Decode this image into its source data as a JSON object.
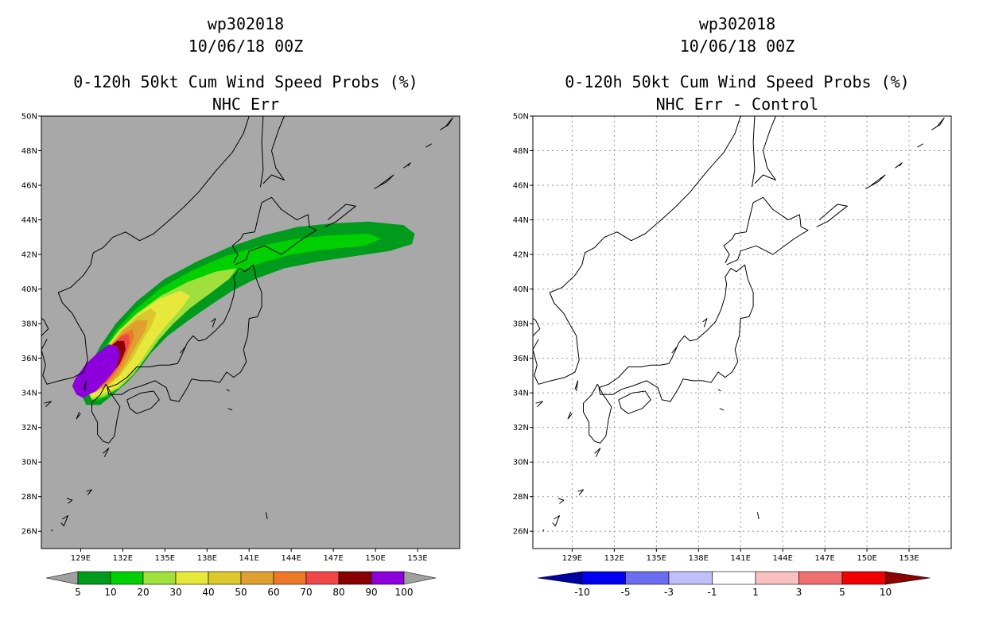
{
  "panels": [
    {
      "id": "left",
      "title_lines": [
        "wp302018",
        "10/06/18 00Z",
        "0-120h 50kt Cum Wind Speed Probs (%)",
        "NHC Err"
      ],
      "background": "#a8a8a8",
      "grid": false,
      "colorbar": {
        "labels": [
          "5",
          "10",
          "20",
          "30",
          "40",
          "50",
          "60",
          "70",
          "80",
          "90",
          "100"
        ],
        "colors": [
          "#a0a0a0",
          "#009b1c",
          "#00d000",
          "#a0e03c",
          "#e8e83c",
          "#dcc82c",
          "#e0a030",
          "#ec7828",
          "#f04848",
          "#880000",
          "#8c00dc",
          "#a0a0a0"
        ]
      }
    },
    {
      "id": "right",
      "title_lines": [
        "wp302018",
        "10/06/18 00Z",
        "0-120h 50kt Cum Wind Speed Probs (%)",
        "NHC Err - Control"
      ],
      "background": "#ffffff",
      "grid": true,
      "colorbar": {
        "labels": [
          "-10",
          "-5",
          "-3",
          "-1",
          "1",
          "3",
          "5",
          "10"
        ],
        "colors": [
          "#0000a0",
          "#0000f0",
          "#6c6cf0",
          "#c0c0f8",
          "#ffffff",
          "#f8c0c0",
          "#f07070",
          "#f00000",
          "#8c0000"
        ]
      }
    }
  ],
  "map": {
    "lat_labels": [
      "50N",
      "48N",
      "46N",
      "44N",
      "42N",
      "40N",
      "38N",
      "36N",
      "34N",
      "32N",
      "30N",
      "28N",
      "26N"
    ],
    "lon_labels": [
      "129E",
      "132E",
      "135E",
      "138E",
      "141E",
      "144E",
      "147E",
      "150E",
      "153E"
    ]
  },
  "probability_field": [
    {
      "level": "5",
      "color": "#009b1c"
    },
    {
      "level": "10",
      "color": "#00d000"
    },
    {
      "level": "20",
      "color": "#a0e03c"
    },
    {
      "level": "30",
      "color": "#e8e83c"
    },
    {
      "level": "40",
      "color": "#dcc82c"
    },
    {
      "level": "50",
      "color": "#e0a030"
    },
    {
      "level": "60",
      "color": "#ec7828"
    },
    {
      "level": "70",
      "color": "#f04848"
    },
    {
      "level": "80",
      "color": "#880000"
    },
    {
      "level": "90",
      "color": "#8c00dc"
    }
  ]
}
